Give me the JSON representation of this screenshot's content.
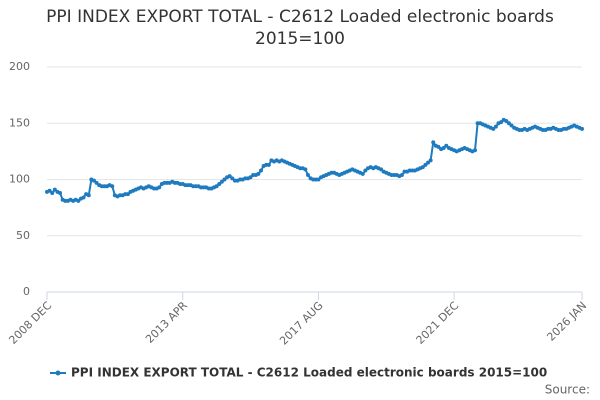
{
  "chart_data": {
    "type": "line",
    "title": "PPI INDEX EXPORT TOTAL - C2612 Loaded electronic boards 2015=100",
    "source": "Source:",
    "categories": [
      "2008 DEC",
      null,
      null,
      null,
      null,
      null,
      null,
      null,
      null,
      null,
      null,
      null,
      null,
      null,
      null,
      null,
      null,
      null,
      null,
      null,
      null,
      null,
      null,
      null,
      null,
      null,
      null,
      null,
      null,
      null,
      null,
      null,
      null,
      null,
      null,
      null,
      null,
      null,
      null,
      null,
      null,
      null,
      null,
      null,
      null,
      null,
      null,
      null,
      null,
      null,
      null,
      null,
      "2013 APR",
      null,
      null,
      null,
      null,
      null,
      null,
      null,
      null,
      null,
      null,
      null,
      null,
      null,
      null,
      null,
      null,
      null,
      null,
      null,
      null,
      null,
      null,
      null,
      null,
      null,
      null,
      null,
      null,
      null,
      null,
      null,
      null,
      null,
      null,
      null,
      null,
      null,
      null,
      null,
      null,
      null,
      null,
      null,
      null,
      null,
      null,
      null,
      null,
      null,
      null,
      null,
      "2017 AUG",
      null,
      null,
      null,
      null,
      null,
      null,
      null,
      null,
      null,
      null,
      null,
      null,
      null,
      null,
      null,
      null,
      null,
      null,
      null,
      null,
      null,
      null,
      null,
      null,
      null,
      null,
      null,
      null,
      null,
      null,
      null,
      null,
      null,
      null,
      null,
      null,
      null,
      null,
      null,
      null,
      null,
      null,
      null,
      null,
      null,
      null,
      null,
      null,
      null,
      null,
      null,
      "2021 DEC",
      null,
      null,
      null,
      null,
      null,
      null,
      null,
      null,
      null,
      null,
      null,
      null,
      null,
      null,
      null,
      null,
      null,
      null,
      null,
      null,
      null,
      null,
      null,
      null,
      null,
      null,
      null,
      null,
      null,
      null,
      null,
      null,
      null,
      null,
      null,
      null,
      null,
      null,
      null,
      null,
      null,
      null,
      null,
      null,
      null,
      null,
      null,
      null,
      "2026 JAN"
    ],
    "series": [
      {
        "name": "PPI INDEX EXPORT TOTAL - C2612 Loaded electronic boards 2015=100",
        "color": "#1f7bbf",
        "values": [
          89,
          90,
          88,
          91,
          89,
          88,
          82,
          81,
          81,
          82,
          81,
          82,
          81,
          83,
          84,
          87,
          86,
          100,
          99,
          97,
          95,
          94,
          94,
          94,
          95,
          94,
          86,
          85,
          86,
          86,
          87,
          87,
          89,
          90,
          91,
          92,
          93,
          92,
          93,
          94,
          93,
          92,
          92,
          93,
          96,
          97,
          97,
          97,
          98,
          97,
          97,
          96,
          96,
          95,
          95,
          95,
          94,
          94,
          94,
          93,
          93,
          93,
          92,
          92,
          93,
          94,
          96,
          98,
          100,
          102,
          103,
          101,
          99,
          99,
          100,
          100,
          101,
          101,
          102,
          104,
          104,
          105,
          108,
          112,
          113,
          113,
          117,
          116,
          117,
          116,
          117,
          116,
          115,
          114,
          113,
          112,
          111,
          110,
          110,
          109,
          104,
          101,
          100,
          100,
          100,
          102,
          103,
          104,
          105,
          106,
          106,
          105,
          104,
          105,
          106,
          107,
          108,
          109,
          108,
          107,
          106,
          105,
          108,
          110,
          111,
          110,
          111,
          110,
          109,
          107,
          106,
          105,
          104,
          104,
          104,
          103,
          104,
          107,
          107,
          108,
          108,
          108,
          109,
          110,
          111,
          113,
          115,
          117,
          133,
          130,
          129,
          127,
          128,
          130,
          128,
          127,
          126,
          125,
          126,
          127,
          128,
          127,
          126,
          125,
          126,
          150,
          150,
          149,
          148,
          147,
          146,
          145,
          147,
          150,
          151,
          153,
          152,
          150,
          148,
          146,
          145,
          144,
          144,
          145,
          144,
          145,
          146,
          147,
          146,
          145,
          144,
          144,
          145,
          145,
          146,
          145,
          144,
          144,
          145,
          145,
          146,
          147,
          148,
          147,
          146,
          145
        ]
      }
    ],
    "ylim": [
      0,
      200
    ],
    "yticks": [
      0,
      50,
      100,
      150,
      200
    ],
    "grid": true,
    "legend": "bottom"
  }
}
